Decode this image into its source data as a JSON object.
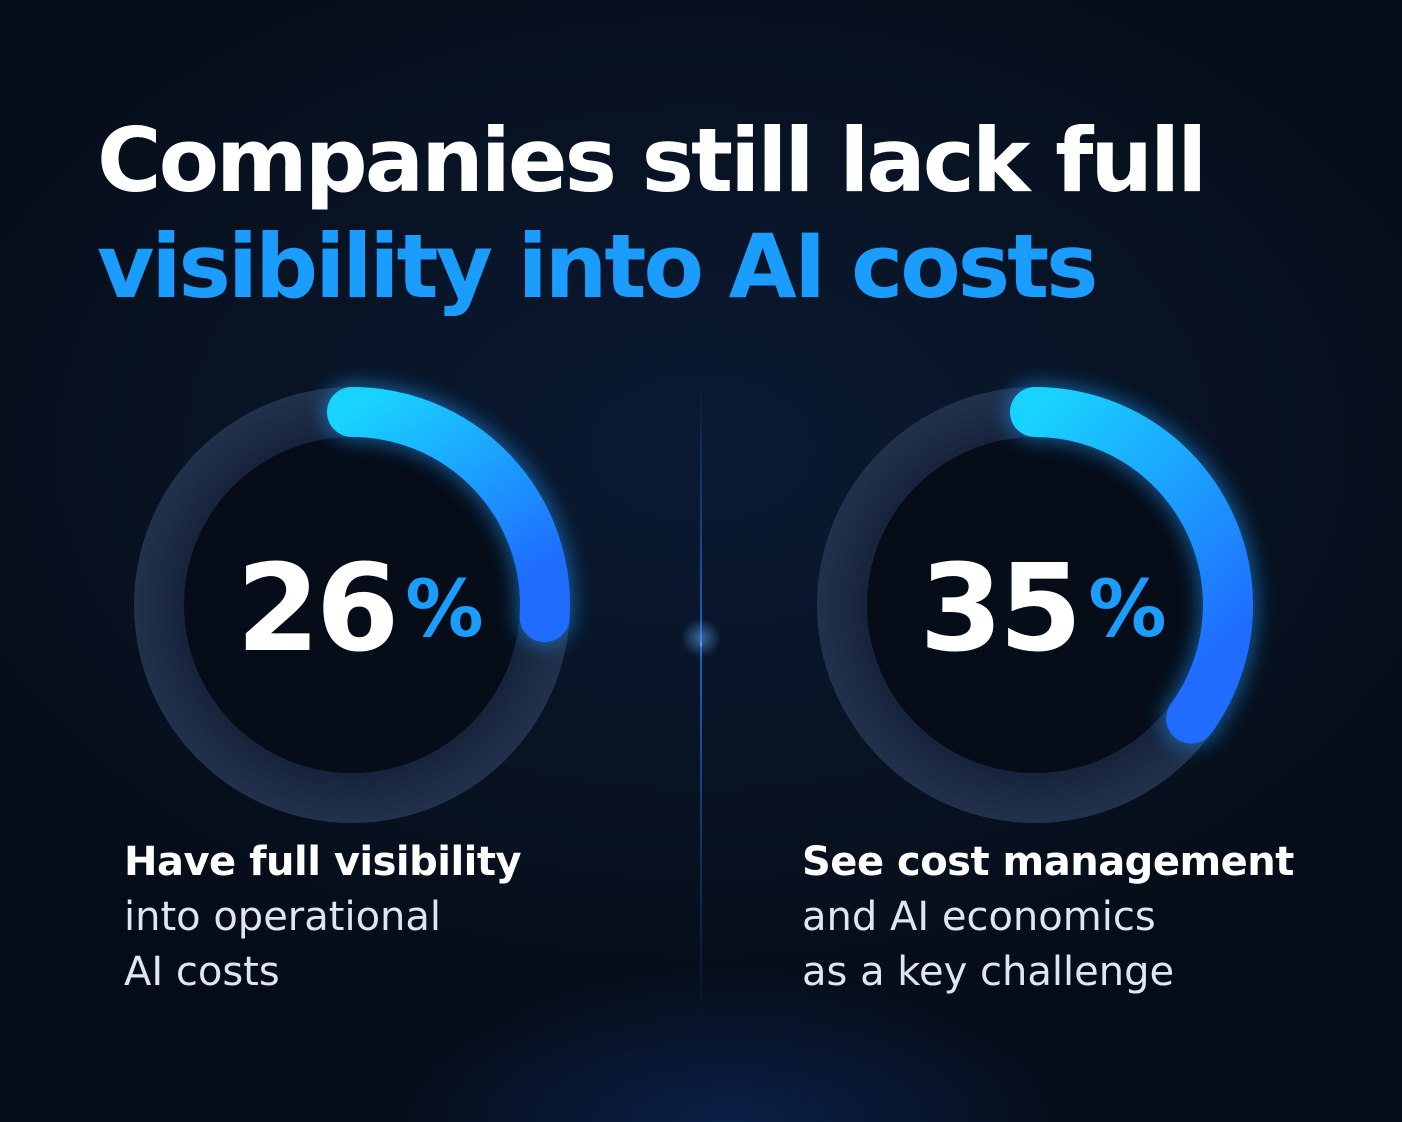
{
  "headline": {
    "line1": "Companies still lack full",
    "line2": "visibility into AI costs"
  },
  "colors": {
    "accent": "#1b9cff",
    "accent_light": "#19d3ff",
    "accent_dark": "#1f6cff",
    "track": "#1e2b42",
    "inner": "#060c18",
    "background": "#07111f"
  },
  "chart_data": [
    {
      "type": "pie",
      "variant": "donut",
      "value": 26,
      "unit": "%",
      "value_label": "26",
      "unit_label": "%",
      "caption": [
        "Have full visibility",
        "into operational",
        "AI costs"
      ]
    },
    {
      "type": "pie",
      "variant": "donut",
      "value": 35,
      "unit": "%",
      "value_label": "35",
      "unit_label": "%",
      "caption": [
        "See cost management",
        "and AI economics",
        "as a key challenge"
      ]
    }
  ]
}
